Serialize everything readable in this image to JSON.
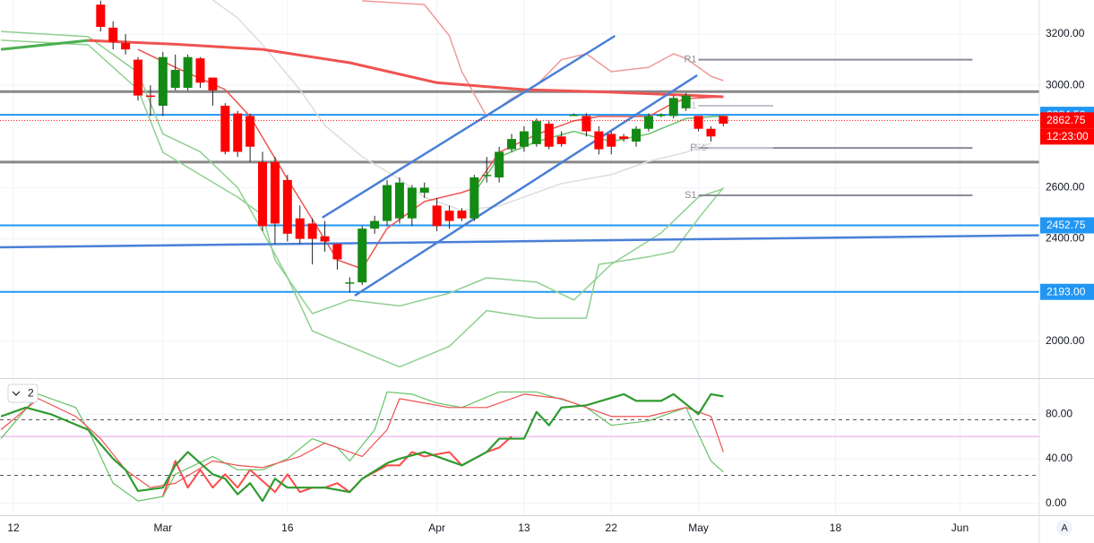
{
  "chart_data": {
    "type": "candlestick",
    "xlim": [
      -1.08,
      82.37
    ],
    "xticks": [
      {
        "value": 0,
        "label": "12"
      },
      {
        "value": 12,
        "label": "Mar"
      },
      {
        "value": 22,
        "label": "16"
      },
      {
        "value": 34,
        "label": "Apr"
      },
      {
        "value": 41,
        "label": "13"
      },
      {
        "value": 48,
        "label": "22"
      },
      {
        "value": 55,
        "label": "May"
      },
      {
        "value": 66,
        "label": "18"
      },
      {
        "value": 76,
        "label": "Jun"
      }
    ],
    "ylim": [
      1863,
      3333
    ],
    "yticks": [
      {
        "value": 2000,
        "label": "2000.00"
      },
      {
        "value": 2400,
        "label": "2400.00"
      },
      {
        "value": 2600,
        "label": "2600.00"
      },
      {
        "value": 3000,
        "label": "3000.00"
      },
      {
        "value": 3200,
        "label": "3200.00"
      }
    ],
    "grid": true,
    "up_color": "#138a13",
    "down_color": "#ff0000",
    "x": [
      7,
      8,
      9,
      10,
      11,
      12,
      13,
      14,
      15,
      16,
      17,
      18,
      19,
      20,
      21,
      22,
      23,
      24,
      25,
      26,
      27,
      28,
      29,
      30,
      31,
      32,
      33,
      34,
      35,
      36,
      37,
      38,
      39,
      40,
      41,
      42,
      43,
      44,
      45,
      46,
      47,
      48,
      49,
      50,
      51,
      52,
      53,
      54,
      55,
      56,
      57
    ],
    "open": [
      3315,
      3225,
      3165,
      3100,
      2960,
      2920,
      2990,
      2990,
      3105,
      3030,
      2920,
      2890,
      2880,
      2700,
      2700,
      2630,
      2480,
      2460,
      2410,
      2380,
      2225,
      2230,
      2440,
      2470,
      2480,
      2480,
      2580,
      2530,
      2510,
      2510,
      2480,
      2645,
      2640,
      2750,
      2760,
      2770,
      2850,
      2800,
      2880,
      2880,
      2820,
      2810,
      2800,
      2780,
      2830,
      2880,
      2880,
      2910,
      2880,
      2830,
      2880
    ],
    "high": [
      3330,
      3250,
      3200,
      3110,
      3000,
      3130,
      3120,
      3120,
      3110,
      3030,
      2930,
      2900,
      2890,
      2740,
      2720,
      2650,
      2530,
      2480,
      2470,
      2380,
      2250,
      2450,
      2490,
      2630,
      2640,
      2610,
      2620,
      2560,
      2530,
      2520,
      2650,
      2720,
      2760,
      2810,
      2840,
      2870,
      2860,
      2820,
      2890,
      2890,
      2840,
      2820,
      2810,
      2840,
      2890,
      2890,
      2960,
      2970,
      2880,
      2840,
      2880
    ],
    "low": [
      3210,
      3140,
      3120,
      2940,
      2880,
      2880,
      2980,
      2980,
      2990,
      2920,
      2730,
      2720,
      2700,
      2430,
      2380,
      2390,
      2380,
      2300,
      2350,
      2280,
      2190,
      2220,
      2420,
      2450,
      2460,
      2450,
      2560,
      2430,
      2440,
      2470,
      2470,
      2620,
      2620,
      2740,
      2740,
      2760,
      2750,
      2760,
      2880,
      2800,
      2730,
      2730,
      2780,
      2760,
      2820,
      2875,
      2870,
      2900,
      2820,
      2780,
      2840
    ],
    "close": [
      3228,
      3170,
      3140,
      2960,
      2955,
      3110,
      3060,
      3110,
      3010,
      2980,
      2740,
      2740,
      2760,
      2450,
      2460,
      2420,
      2400,
      2400,
      2390,
      2320,
      2230,
      2440,
      2470,
      2610,
      2620,
      2600,
      2600,
      2450,
      2470,
      2480,
      2640,
      2650,
      2740,
      2790,
      2820,
      2860,
      2760,
      2770,
      2885,
      2820,
      2750,
      2760,
      2790,
      2830,
      2880,
      2885,
      2950,
      2960,
      2830,
      2800,
      2850
    ],
    "lines": [
      {
        "color": "#ef9a9a",
        "width": 1.5,
        "x": [
          28,
          33,
          35,
          36,
          38,
          40,
          42,
          44,
          46,
          48,
          51,
          53,
          54,
          56,
          57
        ],
        "values": [
          3330,
          3315,
          3193,
          3053,
          2878,
          2948,
          3000,
          3100,
          3123,
          3053,
          3070,
          3123,
          3105,
          3035,
          3018
        ]
      },
      {
        "color": "#dddddd",
        "width": 1.5,
        "x": [
          16,
          18,
          20,
          23,
          25,
          28,
          31,
          33,
          36,
          39,
          42,
          44,
          48,
          51,
          54,
          56
        ],
        "values": [
          3333,
          3263,
          3158,
          2983,
          2843,
          2721,
          2633,
          2563,
          2511,
          2528,
          2581,
          2616,
          2651,
          2703,
          2738,
          2773
        ]
      },
      {
        "color": "#8fcf8f",
        "width": 1.5,
        "x": [
          -1,
          6,
          10,
          12,
          15,
          18,
          20,
          21,
          24,
          27,
          31,
          35,
          38,
          42,
          45,
          48,
          52,
          55,
          57
        ],
        "values": [
          3176,
          3158,
          2983,
          2738,
          2650,
          2563,
          2493,
          2318,
          2108,
          2161,
          2138,
          2188,
          2248,
          2231,
          2161,
          2301,
          2423,
          2563,
          2596
        ]
      },
      {
        "color": "#8fcf8f",
        "width": 1.5,
        "x": [
          -1,
          6,
          10,
          12,
          15,
          18,
          20,
          22,
          24,
          27,
          31,
          35,
          38,
          42,
          46,
          47,
          51,
          53,
          55,
          57
        ],
        "values": [
          3210,
          3190,
          3050,
          2810,
          2740,
          2600,
          2430,
          2250,
          2040,
          1980,
          1900,
          1980,
          2120,
          2090,
          2090,
          2300,
          2330,
          2350,
          2480,
          2600
        ]
      },
      {
        "color": "#6cbf6c",
        "width": 1.5,
        "x": [
          37,
          39,
          42,
          45,
          48,
          51,
          54,
          57
        ],
        "values": [
          2580,
          2720,
          2780,
          2820,
          2780,
          2810,
          2870,
          2880
        ]
      },
      {
        "color": "#ef5350",
        "width": 1.5,
        "x": [
          10,
          13,
          17,
          19,
          22,
          24,
          26,
          28,
          30,
          33,
          36,
          37,
          39,
          42,
          45,
          47,
          51,
          53,
          54,
          57
        ],
        "values": [
          3140,
          3070,
          2983,
          2878,
          2633,
          2476,
          2318,
          2283,
          2441,
          2546,
          2581,
          2598,
          2738,
          2808,
          2861,
          2878,
          2878,
          2931,
          2948,
          2955
        ]
      },
      {
        "color": "#4caf50",
        "width": 3,
        "x": [
          -1,
          6
        ],
        "values": [
          3140,
          3175
        ]
      },
      {
        "color": "#ef5350",
        "width": 3,
        "x": [
          6,
          13,
          20,
          27,
          34,
          41,
          48,
          57
        ],
        "values": [
          3175,
          3160,
          3140,
          3088,
          3010,
          2983,
          2973,
          2955
        ]
      }
    ],
    "trendlines": [
      {
        "color": "#4a7fd6",
        "x": [
          24.8,
          48.3
        ],
        "values": [
          2483,
          3193
        ]
      },
      {
        "color": "#4a7fd6",
        "x": [
          27.4,
          54.9
        ],
        "values": [
          2178,
          3039
        ]
      },
      {
        "color": "#4a7fd6",
        "x": [
          -1.08,
          82.37
        ],
        "values": [
          2367,
          2414
        ]
      }
    ],
    "levels": [
      {
        "value": 2884.5,
        "label": "2884.50",
        "color": "#2196f3"
      },
      {
        "value": 2452.75,
        "label": "2452.75",
        "color": "#2196f3"
      },
      {
        "value": 2193,
        "label": "2193.00",
        "color": "#2196f3"
      },
      {
        "value": 2975,
        "color": "#888888"
      },
      {
        "value": 2700,
        "color": "#888888"
      }
    ],
    "last_price": {
      "value": 2862.75,
      "label": "2862.75",
      "color": "#ff0000"
    },
    "countdown": "12:23:00",
    "pivots": [
      {
        "label": "R1",
        "value": 3100,
        "x": [
          55,
          77
        ],
        "color": "#8a8d96"
      },
      {
        "label": "R1",
        "value": 2920,
        "x": [
          55,
          61
        ],
        "color": "#c0c3cb"
      },
      {
        "label": "P",
        "value": 2755,
        "x": [
          55,
          77
        ],
        "color": "#8a8d96"
      },
      {
        "label": "S1",
        "value": 2755,
        "x": [
          55.8,
          61
        ],
        "color": "#c0c3cb"
      },
      {
        "label": "S1",
        "value": 2570,
        "x": [
          55,
          77
        ],
        "color": "#8a8d96"
      }
    ],
    "oscillator": {
      "legend": "2",
      "ylim": [
        -10,
        110
      ],
      "yticks": [
        {
          "value": 0,
          "label": "0.00"
        },
        {
          "value": 40,
          "label": "40.00"
        },
        {
          "value": 80,
          "label": "80.00"
        }
      ],
      "levels": [
        {
          "value": 75,
          "color": "#555555",
          "dash": true
        },
        {
          "value": 25,
          "color": "#555555",
          "dash": true
        },
        {
          "value": 60,
          "color": "#e6a0e6",
          "dash": false
        }
      ],
      "lines": [
        {
          "color": "#ff4a4a",
          "width": 2,
          "x": [
            12,
            13,
            14,
            15,
            16,
            17,
            18,
            19,
            21,
            22,
            23,
            24,
            25,
            26,
            27,
            28,
            30,
            31,
            32,
            33,
            35,
            36,
            38,
            39,
            40
          ],
          "values": [
            6,
            38,
            14,
            30,
            14,
            26,
            14,
            30,
            10,
            26,
            10,
            14,
            14,
            18,
            10,
            22,
            34,
            34,
            46,
            42,
            46,
            34,
            46,
            50,
            60
          ]
        },
        {
          "color": "#66c266",
          "width": 1.2,
          "x": [
            -1,
            2,
            5,
            6,
            8,
            10,
            12,
            13,
            16,
            18,
            20,
            22,
            24,
            26,
            27,
            29,
            30,
            32,
            34,
            36,
            39,
            42,
            45,
            46,
            48,
            51,
            52,
            54,
            56,
            57
          ],
          "values": [
            58,
            98,
            86,
            66,
            18,
            2,
            6,
            26,
            42,
            30,
            30,
            40,
            58,
            50,
            38,
            66,
            100,
            98,
            90,
            86,
            100,
            100,
            90,
            86,
            70,
            74,
            78,
            86,
            38,
            28
          ]
        },
        {
          "color": "#f05050",
          "width": 1.2,
          "x": [
            -1,
            2,
            5,
            7,
            9,
            11,
            13,
            16,
            18,
            20,
            23,
            25,
            28,
            30,
            31,
            35,
            38,
            41,
            44,
            48,
            51,
            54,
            56,
            57
          ],
          "values": [
            66,
            94,
            78,
            58,
            30,
            14,
            18,
            38,
            34,
            32,
            42,
            54,
            42,
            66,
            94,
            86,
            86,
            98,
            94,
            78,
            78,
            86,
            78,
            46
          ]
        },
        {
          "color": "#2e9b2e",
          "width": 2.2,
          "x": [
            -1,
            1,
            3,
            6,
            8,
            9,
            10,
            12,
            13,
            14,
            16,
            17,
            18,
            19,
            20,
            21,
            22,
            23,
            25,
            27,
            28,
            30,
            31,
            33,
            34,
            36,
            38,
            39,
            41,
            42,
            43,
            44,
            46,
            49,
            50,
            52,
            53,
            55,
            56,
            57
          ],
          "values": [
            78,
            86,
            80,
            66,
            40,
            30,
            11,
            14,
            34,
            46,
            26,
            22,
            8,
            18,
            2,
            22,
            14,
            14,
            14,
            10,
            22,
            36,
            40,
            46,
            42,
            34,
            46,
            58,
            58,
            82,
            70,
            86,
            88,
            98,
            92,
            92,
            98,
            80,
            98,
            96
          ]
        }
      ]
    },
    "scale_button": "A"
  }
}
